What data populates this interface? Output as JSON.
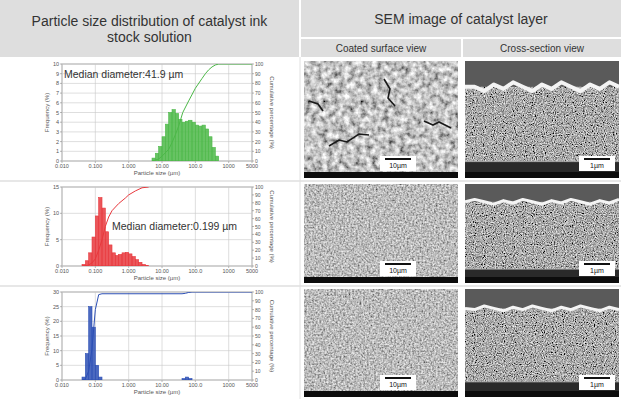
{
  "header": {
    "left_title": "Particle size distribution of catalyst ink stock solution",
    "right_title": "SEM image of catalyst layer",
    "columns": [
      "Coated surface view",
      "Cross-section view"
    ]
  },
  "chart_data": [
    {
      "type": "histogram",
      "log": "x",
      "grid": true,
      "x_label": "Particle size (µm)",
      "y_label": "Frequency (%)",
      "y2_label": "Cumulative percentage (%)",
      "annotation": "Median diameter:41.9 µm",
      "xlim": [
        0.01,
        5000
      ],
      "xticks": [
        {
          "value": 0.01,
          "label": "0.010"
        },
        {
          "value": 0.1,
          "label": "0.100"
        },
        {
          "value": 1,
          "label": "1.000"
        },
        {
          "value": 10,
          "label": "10.00"
        },
        {
          "value": 100,
          "label": "100.0"
        },
        1000,
        5000
      ],
      "ylim": [
        0,
        10
      ],
      "yticks": [
        0,
        1,
        2,
        3,
        4,
        5,
        6,
        7,
        8,
        9,
        10
      ],
      "y2lim": [
        0,
        100
      ],
      "y2ticks": [
        0,
        10,
        20,
        30,
        40,
        50,
        60,
        70,
        80,
        90,
        100
      ],
      "series": [
        {
          "type": "bar",
          "color": "#4cb848",
          "bins": [
            5.012,
            6.31,
            7.943,
            10,
            12.59,
            15.85,
            19.95,
            25.12,
            31.62,
            39.81,
            50.12,
            63.1,
            79.43,
            100,
            125.9,
            158.5,
            199.5,
            251.2,
            316.2,
            398.1,
            501.2
          ],
          "values": [
            0.3,
            0.8,
            1.5,
            2.5,
            3.8,
            5.0,
            5.3,
            4.9,
            4.3,
            4.0,
            4.1,
            4.2,
            4.0,
            3.7,
            3.6,
            3.7,
            3.3,
            2.5,
            1.4,
            0.5
          ]
        },
        {
          "type": "line",
          "color": "#4cb848",
          "axis": "y2",
          "x": [
            5.0,
            7.9,
            10,
            15.8,
            20,
            25.1,
            31.6,
            41.9,
            63.1,
            100,
            158,
            200,
            251,
            316,
            398,
            501,
            5000
          ],
          "values": [
            0,
            2,
            5,
            12,
            19,
            27,
            36,
            50,
            62,
            75,
            85,
            90,
            94,
            97,
            99,
            100,
            100
          ]
        }
      ]
    },
    {
      "type": "histogram",
      "log": "x",
      "grid": true,
      "x_label": "Particle size (µm)",
      "y_label": "Frequency (%)",
      "y2_label": "Cumulative percentage (%)",
      "annotation": "Median diameter:0.199 µm",
      "xlim": [
        0.01,
        5000
      ],
      "xticks": [
        {
          "value": 0.01,
          "label": "0.010"
        },
        {
          "value": 0.1,
          "label": "0.100"
        },
        {
          "value": 1,
          "label": "1.000"
        },
        {
          "value": 10,
          "label": "10.00"
        },
        {
          "value": 100,
          "label": "100.0"
        },
        1000,
        5000
      ],
      "ylim": [
        0,
        15
      ],
      "yticks": [
        0,
        5,
        10,
        15
      ],
      "y2lim": [
        0,
        100
      ],
      "y2ticks": [
        0,
        10,
        20,
        30,
        40,
        50,
        60,
        70,
        80,
        90,
        100
      ],
      "series": [
        {
          "type": "bar",
          "color": "#e8383d",
          "bins": [
            0.0398,
            0.0501,
            0.0631,
            0.0794,
            0.1,
            0.1259,
            0.1585,
            0.1995,
            0.2512,
            0.3162,
            0.3981,
            0.5012,
            0.631,
            0.7943,
            1,
            1.259,
            1.585,
            1.995,
            2.512,
            3.162,
            3.981
          ],
          "values": [
            0.3,
            1.0,
            2.5,
            5.5,
            9.5,
            13.0,
            11.0,
            6.5,
            4.0,
            2.5,
            2.0,
            2.2,
            2.5,
            2.6,
            2.3,
            1.8,
            1.2,
            0.7,
            0.3,
            0.1
          ]
        },
        {
          "type": "line",
          "color": "#e8383d",
          "axis": "y2",
          "x": [
            0.04,
            0.05,
            0.063,
            0.079,
            0.1,
            0.126,
            0.158,
            0.199,
            0.251,
            0.316,
            0.5,
            0.794,
            1.0,
            1.585,
            2.512,
            3.98
          ],
          "values": [
            0,
            0.3,
            1.3,
            3.8,
            9,
            20,
            33,
            50,
            62,
            70,
            79,
            86,
            90,
            95,
            99,
            100
          ]
        }
      ]
    },
    {
      "type": "histogram",
      "log": "x",
      "grid": true,
      "x_label": "Particle size (µm)",
      "y_label": "Frequency (%)",
      "y2_label": "Cumulative percentage (%)",
      "xlim": [
        0.01,
        5000
      ],
      "xticks": [
        {
          "value": 0.01,
          "label": "0.010"
        },
        {
          "value": 0.1,
          "label": "0.100"
        },
        {
          "value": 1,
          "label": "1.000"
        },
        {
          "value": 10,
          "label": "10.00"
        },
        {
          "value": 100,
          "label": "100.0"
        },
        1000,
        5000
      ],
      "ylim": [
        0,
        30
      ],
      "yticks": [
        0,
        5,
        10,
        15,
        20,
        25,
        30
      ],
      "y2lim": [
        0,
        100
      ],
      "y2ticks": [
        0,
        10,
        20,
        30,
        40,
        50,
        60,
        70,
        80,
        90,
        100
      ],
      "series": [
        {
          "type": "bar",
          "color": "#2c4fb5",
          "bins": [
            0.0398,
            0.0501,
            0.0631,
            0.0794,
            0.1,
            0.1259,
            0.1585,
            39.81,
            50.12,
            63.1,
            79.43
          ],
          "values": [
            1.0,
            9.0,
            25.0,
            18.0,
            5.0,
            1.0,
            0,
            0.5,
            1.0,
            0.5
          ]
        },
        {
          "type": "line",
          "color": "#2c4fb5",
          "axis": "y2",
          "x": [
            0.04,
            0.05,
            0.063,
            0.079,
            0.1,
            0.126,
            0.158,
            39.8,
            50.1,
            63.1,
            79.4,
            5000
          ],
          "values": [
            0,
            1,
            10,
            35,
            80,
            97,
            98,
            98,
            98.5,
            99.5,
            100,
            100
          ]
        }
      ]
    }
  ],
  "sem_images": [
    {
      "surface_scale": "10µm",
      "cross_section_scale": "1µm"
    },
    {
      "surface_scale": "10µm",
      "cross_section_scale": "1µm"
    },
    {
      "surface_scale": "10µm",
      "cross_section_scale": "1µm"
    }
  ]
}
